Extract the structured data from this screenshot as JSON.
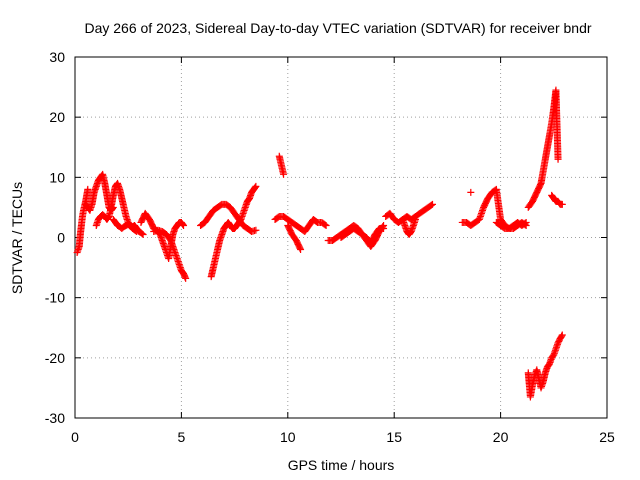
{
  "chart_data": {
    "type": "scatter",
    "title": "Day 266 of 2023, Sidereal Day-to-day VTEC variation (SDTVAR) for receiver bndr",
    "xlabel": "GPS time / hours",
    "ylabel": "SDTVAR / TECUs",
    "xlim": [
      0,
      25
    ],
    "ylim": [
      -30,
      30
    ],
    "xticks": [
      0,
      5,
      10,
      15,
      20,
      25
    ],
    "yticks": [
      -30,
      -20,
      -10,
      0,
      10,
      20,
      30
    ],
    "xtick_labels": [
      "0",
      "5",
      "10",
      "15",
      "20",
      "25"
    ],
    "ytick_labels": [
      "-30",
      "-20",
      "-10",
      "0",
      "10",
      "20",
      "30"
    ],
    "grid": true,
    "marker": "+",
    "color": "#ff0000",
    "series": [
      {
        "name": "SDTVAR",
        "segments": [
          {
            "x": [
              0.1,
              0.2,
              0.25,
              0.3,
              0.35,
              0.4,
              0.5,
              0.6
            ],
            "y": [
              -2.5,
              -1.5,
              0.5,
              2.0,
              3.5,
              4.5,
              6.0,
              8.0
            ]
          },
          {
            "x": [
              0.5,
              0.6,
              0.7,
              0.8,
              0.9,
              1.0,
              1.1,
              1.2,
              1.3,
              1.4,
              1.5,
              1.6,
              1.7,
              1.8
            ],
            "y": [
              5.5,
              5.0,
              4.5,
              5.5,
              7.5,
              8.5,
              9.5,
              10.0,
              10.5,
              9.0,
              7.0,
              5.0,
              4.5,
              5.0
            ]
          },
          {
            "x": [
              1.0,
              1.1,
              1.2,
              1.3,
              1.4,
              1.5,
              1.6,
              1.7,
              1.8,
              1.9,
              2.0,
              2.1,
              2.2,
              2.3,
              2.4,
              2.5,
              2.6,
              2.7,
              2.8,
              2.9,
              3.0,
              3.1,
              3.2
            ],
            "y": [
              2.0,
              3.0,
              3.5,
              3.8,
              3.5,
              3.0,
              3.5,
              5.0,
              7.0,
              8.5,
              9.0,
              8.0,
              6.5,
              5.0,
              3.5,
              2.5,
              2.0,
              1.8,
              2.0,
              1.5,
              1.0,
              0.8,
              0.5
            ]
          },
          {
            "x": [
              1.8,
              1.9,
              2.0,
              2.1,
              2.2,
              2.3,
              2.5,
              2.7,
              2.9
            ],
            "y": [
              3.0,
              2.5,
              2.0,
              1.8,
              1.5,
              1.8,
              2.2,
              1.5,
              1.0
            ]
          },
          {
            "x": [
              3.1,
              3.3,
              3.5,
              3.7,
              3.9,
              4.0,
              4.1,
              4.2,
              4.3,
              4.4,
              4.5,
              4.6,
              4.7,
              4.8,
              4.9,
              5.0,
              5.1
            ],
            "y": [
              2.5,
              4.0,
              3.0,
              1.5,
              1.0,
              0.5,
              -0.5,
              -1.5,
              -2.5,
              -3.5,
              -1.5,
              0.5,
              1.5,
              2.0,
              2.5,
              2.5,
              2.0
            ]
          },
          {
            "x": [
              3.7,
              3.9,
              4.1,
              4.3,
              4.5,
              4.6,
              4.7,
              4.8,
              4.9,
              5.0,
              5.1,
              5.2
            ],
            "y": [
              1.0,
              1.2,
              1.0,
              0.5,
              -0.5,
              -1.5,
              -2.5,
              -3.5,
              -4.5,
              -5.5,
              -6.0,
              -6.8
            ]
          },
          {
            "x": [
              5.9,
              6.1,
              6.3,
              6.5,
              6.7,
              6.9,
              7.1,
              7.3,
              7.5,
              7.7,
              7.9,
              8.1,
              8.3,
              8.5
            ],
            "y": [
              2.0,
              2.5,
              3.5,
              4.5,
              5.0,
              5.5,
              5.5,
              5.0,
              4.0,
              3.0,
              2.0,
              1.5,
              1.0,
              1.2
            ]
          },
          {
            "x": [
              6.4,
              6.5,
              6.6,
              6.7,
              6.8,
              6.9,
              7.0,
              7.1,
              7.2,
              7.3,
              7.4,
              7.5,
              7.6,
              7.7,
              7.8,
              7.9,
              8.0,
              8.1,
              8.2,
              8.3,
              8.4,
              8.5
            ],
            "y": [
              -6.5,
              -5.0,
              -3.5,
              -2.0,
              -0.5,
              0.5,
              1.5,
              2.0,
              2.5,
              2.0,
              1.5,
              1.5,
              2.0,
              2.5,
              3.0,
              4.0,
              5.0,
              6.0,
              6.5,
              7.5,
              8.0,
              8.5
            ]
          },
          {
            "x": [
              9.6,
              9.7,
              9.8
            ],
            "y": [
              13.5,
              12.0,
              10.5
            ]
          },
          {
            "x": [
              9.4,
              9.6,
              9.8,
              10.0,
              10.2,
              10.4,
              10.6,
              10.8,
              11.0,
              11.2,
              11.4,
              11.6,
              11.8
            ],
            "y": [
              3.0,
              3.5,
              3.5,
              3.0,
              2.5,
              2.0,
              1.5,
              1.0,
              2.0,
              3.0,
              2.5,
              2.5,
              2.0
            ]
          },
          {
            "x": [
              10.0,
              10.2,
              10.4,
              10.6
            ],
            "y": [
              2.0,
              0.5,
              -0.5,
              -2.0
            ]
          },
          {
            "x": [
              11.9,
              12.1,
              12.3,
              12.5,
              12.7,
              12.9,
              13.1,
              13.3,
              13.5,
              13.7,
              13.9,
              14.1,
              14.3,
              14.5
            ],
            "y": [
              -0.5,
              -0.5,
              0.0,
              0.5,
              1.0,
              1.5,
              2.0,
              1.5,
              0.5,
              0.0,
              -1.0,
              0.5,
              1.5,
              1.5
            ]
          },
          {
            "x": [
              12.5,
              12.7,
              12.9,
              13.1,
              13.3,
              13.5,
              13.7,
              13.9,
              14.1,
              14.3,
              14.5
            ],
            "y": [
              0.0,
              0.5,
              1.0,
              1.5,
              1.0,
              0.5,
              -0.5,
              -1.5,
              -0.5,
              1.0,
              2.0
            ]
          },
          {
            "x": [
              14.6,
              14.8,
              15.0,
              15.2,
              15.4,
              15.6,
              15.8,
              16.0,
              16.2,
              16.4,
              16.6,
              16.8
            ],
            "y": [
              3.5,
              4.0,
              3.0,
              2.5,
              3.0,
              3.5,
              3.0,
              3.5,
              4.0,
              4.5,
              5.0,
              5.5
            ]
          },
          {
            "x": [
              15.4,
              15.5,
              15.6,
              15.7,
              15.8,
              15.9,
              16.0
            ],
            "y": [
              3.0,
              2.0,
              1.0,
              0.5,
              1.0,
              2.0,
              3.0
            ]
          },
          {
            "x": [
              18.2,
              18.4,
              18.6,
              18.8,
              19.0,
              19.2,
              19.4,
              19.6,
              19.8,
              20.0,
              20.2,
              20.4,
              20.6,
              20.8,
              21.0,
              21.2
            ],
            "y": [
              2.5,
              2.5,
              2.0,
              2.5,
              3.0,
              5.0,
              6.5,
              7.5,
              8.0,
              3.0,
              2.0,
              1.5,
              2.0,
              2.5,
              2.0,
              2.5
            ]
          },
          {
            "x": [
              18.6
            ],
            "y": [
              7.5
            ]
          },
          {
            "x": [
              19.8,
              20.0,
              20.2,
              20.4,
              20.6,
              20.8,
              21.0,
              21.2
            ],
            "y": [
              2.5,
              2.0,
              1.5,
              1.5,
              1.5,
              2.0,
              2.5,
              2.0
            ]
          },
          {
            "x": [
              21.3,
              21.5,
              21.7,
              21.9,
              22.0,
              22.1,
              22.2,
              22.3,
              22.4,
              22.5,
              22.6,
              22.7
            ],
            "y": [
              5.0,
              6.0,
              7.5,
              9.0,
              11.0,
              13.0,
              15.0,
              17.0,
              19.0,
              21.5,
              24.5,
              13.0
            ]
          },
          {
            "x": [
              22.4,
              22.5,
              22.6,
              22.7,
              22.8,
              22.9
            ],
            "y": [
              7.0,
              6.5,
              6.0,
              6.0,
              5.5,
              5.5
            ]
          },
          {
            "x": [
              21.3,
              21.4,
              21.5,
              21.6,
              21.7,
              21.8,
              21.9,
              22.0,
              22.1,
              22.2,
              22.3,
              22.4,
              22.5,
              22.6,
              22.7,
              22.8,
              22.9
            ],
            "y": [
              -22.5,
              -26.5,
              -24.5,
              -23.0,
              -22.0,
              -23.5,
              -25.0,
              -24.0,
              -22.5,
              -21.5,
              -21.0,
              -20.0,
              -19.5,
              -18.5,
              -17.5,
              -16.8,
              -16.2
            ]
          }
        ]
      }
    ]
  }
}
